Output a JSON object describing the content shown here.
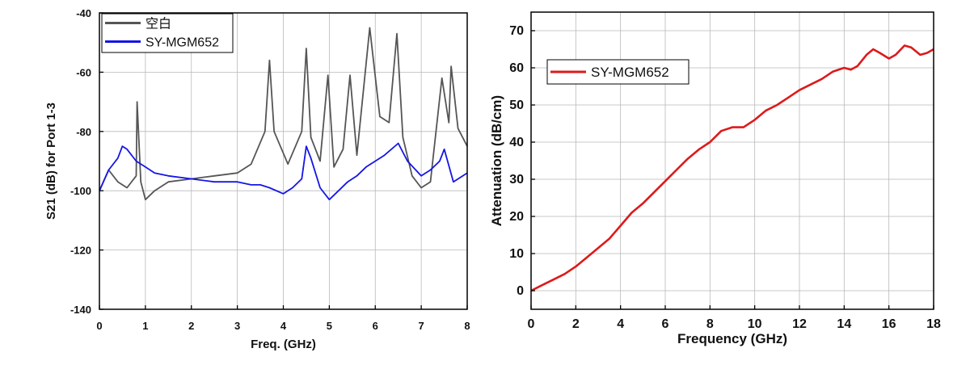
{
  "chart_data": [
    {
      "type": "line",
      "xlabel": "Freq. (GHz)",
      "ylabel": "S21 (dB) for Port 1-3",
      "xlim": [
        0,
        8
      ],
      "ylim": [
        -140,
        -40
      ],
      "xticks": [
        "0",
        "1",
        "2",
        "3",
        "4",
        "5",
        "6",
        "7",
        "8"
      ],
      "yticks": [
        "-140",
        "-120",
        "-100",
        "-80",
        "-60",
        "-40"
      ],
      "grid": true,
      "legend_position": "top-left",
      "series": [
        {
          "name": "空白",
          "color": "#555555",
          "x": [
            0.0,
            0.2,
            0.4,
            0.6,
            0.8,
            0.82,
            0.9,
            1.0,
            1.2,
            1.5,
            2.0,
            2.5,
            3.0,
            3.3,
            3.6,
            3.7,
            3.8,
            4.1,
            4.4,
            4.5,
            4.6,
            4.8,
            4.97,
            5.1,
            5.3,
            5.45,
            5.6,
            5.88,
            6.1,
            6.3,
            6.47,
            6.6,
            6.8,
            7.0,
            7.2,
            7.45,
            7.6,
            7.65,
            7.8,
            8.0
          ],
          "y": [
            -100,
            -93,
            -97,
            -99,
            -95,
            -70,
            -97,
            -103,
            -100,
            -97,
            -96,
            -95,
            -94,
            -91,
            -80,
            -56,
            -80,
            -91,
            -80,
            -52,
            -82,
            -90,
            -61,
            -92,
            -86,
            -61,
            -88,
            -45,
            -75,
            -77,
            -47,
            -82,
            -95,
            -99,
            -97,
            -62,
            -77,
            -58,
            -79,
            -85
          ]
        },
        {
          "name": "SY-MGM652",
          "color": "#1515e6",
          "x": [
            0.0,
            0.2,
            0.4,
            0.5,
            0.6,
            0.8,
            1.0,
            1.2,
            1.5,
            2.0,
            2.5,
            3.0,
            3.3,
            3.5,
            3.7,
            4.0,
            4.2,
            4.4,
            4.5,
            4.6,
            4.8,
            5.0,
            5.2,
            5.4,
            5.6,
            5.8,
            6.0,
            6.2,
            6.5,
            6.7,
            7.0,
            7.2,
            7.4,
            7.5,
            7.7,
            8.0
          ],
          "y": [
            -100,
            -93,
            -89,
            -85,
            -86,
            -90,
            -92,
            -94,
            -95,
            -96,
            -97,
            -97,
            -98,
            -98,
            -99,
            -101,
            -99,
            -96,
            -85,
            -89,
            -99,
            -103,
            -100,
            -97,
            -95,
            -92,
            -90,
            -88,
            -84,
            -90,
            -95,
            -93,
            -90,
            -86,
            -97,
            -94
          ]
        }
      ]
    },
    {
      "type": "line",
      "xlabel": "Frequency (GHz)",
      "ylabel": "Attenuation (dB/cm)",
      "xlim": [
        0,
        18
      ],
      "ylim": [
        -5,
        75
      ],
      "xticks": [
        "0",
        "2",
        "4",
        "6",
        "8",
        "10",
        "12",
        "14",
        "16",
        "18"
      ],
      "yticks": [
        "0",
        "10",
        "20",
        "30",
        "40",
        "50",
        "60",
        "70"
      ],
      "grid": true,
      "legend_position": "top-left",
      "series": [
        {
          "name": "SY-MGM652",
          "color": "#dd1a1a",
          "x": [
            0.0,
            0.5,
            1.0,
            1.5,
            2.0,
            2.5,
            3.0,
            3.5,
            4.0,
            4.5,
            5.0,
            5.5,
            6.0,
            6.5,
            7.0,
            7.5,
            8.0,
            8.5,
            9.0,
            9.5,
            10.0,
            10.5,
            11.0,
            11.5,
            12.0,
            12.5,
            13.0,
            13.5,
            14.0,
            14.3,
            14.6,
            15.0,
            15.3,
            15.6,
            16.0,
            16.3,
            16.7,
            17.0,
            17.4,
            17.7,
            18.0
          ],
          "y": [
            0.0,
            1.5,
            3.0,
            4.5,
            6.5,
            9.0,
            11.5,
            14.0,
            17.5,
            21.0,
            23.5,
            26.5,
            29.5,
            32.5,
            35.5,
            38.0,
            40.0,
            43.0,
            44.0,
            44.0,
            46.0,
            48.5,
            50.0,
            52.0,
            54.0,
            55.5,
            57.0,
            59.0,
            60.0,
            59.5,
            60.5,
            63.5,
            65.0,
            64.0,
            62.5,
            63.5,
            66.0,
            65.5,
            63.5,
            64.0,
            65.0
          ]
        }
      ]
    }
  ]
}
